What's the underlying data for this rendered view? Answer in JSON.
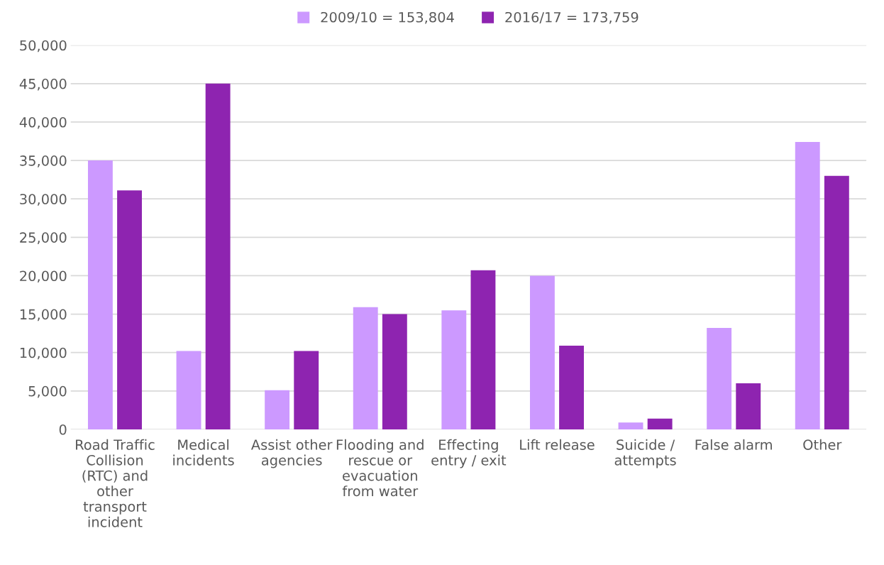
{
  "chart_data": {
    "type": "bar",
    "categories": [
      "Road Traffic\nCollision\n(RTC) and\nother\ntransport\nincident",
      "Medical\nincidents",
      "Assist other\nagencies",
      "Flooding and\nrescue or\nevacuation\nfrom water",
      "Effecting\nentry / exit",
      "Lift release",
      "Suicide /\nattempts",
      "False alarm",
      "Other"
    ],
    "series": [
      {
        "name": "2009/10 = 153,804",
        "color": "#cc99ff",
        "values": [
          35000,
          10200,
          5100,
          15900,
          15500,
          20000,
          900,
          13200,
          37400
        ]
      },
      {
        "name": "2016/17 = 173,759",
        "color": "#8e24b0",
        "values": [
          31100,
          45000,
          10200,
          15000,
          20700,
          10900,
          1400,
          6000,
          33000
        ]
      }
    ],
    "ylim": [
      0,
      50000
    ],
    "yticks": [
      {
        "value": 0,
        "label": "0"
      },
      {
        "value": 5000,
        "label": "5,000"
      },
      {
        "value": 10000,
        "label": "10,000"
      },
      {
        "value": 15000,
        "label": "15,000"
      },
      {
        "value": 20000,
        "label": "20,000"
      },
      {
        "value": 25000,
        "label": "25,000"
      },
      {
        "value": 30000,
        "label": "30,000"
      },
      {
        "value": 35000,
        "label": "35,000"
      },
      {
        "value": 40000,
        "label": "40,000"
      },
      {
        "value": 45000,
        "label": "45,000"
      },
      {
        "value": 50000,
        "label": "50,000"
      }
    ],
    "grid": "y",
    "legend": "top"
  }
}
